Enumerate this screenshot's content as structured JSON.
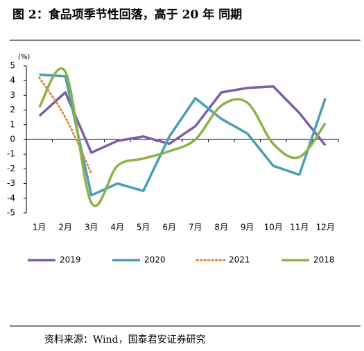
{
  "chart_data": {
    "type": "line",
    "title": "图 2：食品项季节性回落，高于 20 年 同期",
    "ylabel": "(%)",
    "source": "资料来源：Wind，国泰君安证券研究",
    "categories": [
      "1月",
      "2月",
      "3月",
      "4月",
      "5月",
      "6月",
      "7月",
      "8月",
      "9月",
      "10月",
      "11月",
      "12月"
    ],
    "ylim": [
      -5,
      5
    ],
    "yticks": [
      -5,
      -4,
      -3,
      -2,
      -1,
      0,
      1,
      2,
      3,
      4,
      5
    ],
    "legend": "bottom",
    "series": [
      {
        "name": "2019",
        "color": "#7b5ea7",
        "style": "solid",
        "smooth": false,
        "values": [
          1.6,
          3.2,
          -0.9,
          -0.1,
          0.2,
          -0.3,
          0.9,
          3.2,
          3.5,
          3.6,
          1.8,
          -0.4
        ]
      },
      {
        "name": "2020",
        "color": "#4a9db5",
        "style": "solid",
        "smooth": false,
        "values": [
          4.4,
          4.3,
          -3.8,
          -3.0,
          -3.5,
          0.2,
          2.8,
          1.4,
          0.4,
          -1.8,
          -2.4,
          2.8
        ]
      },
      {
        "name": "2021",
        "color": "#e08a3c",
        "style": "dotted",
        "smooth": true,
        "values": [
          4.2,
          1.5,
          -2.3,
          null,
          null,
          null,
          null,
          null,
          null,
          null,
          null,
          null
        ]
      },
      {
        "name": "2018",
        "color": "#8db04a",
        "style": "solid",
        "smooth": true,
        "values": [
          2.2,
          4.6,
          -4.3,
          -1.8,
          -1.3,
          -0.8,
          0.0,
          2.3,
          2.5,
          -0.3,
          -1.2,
          1.1
        ]
      }
    ]
  }
}
